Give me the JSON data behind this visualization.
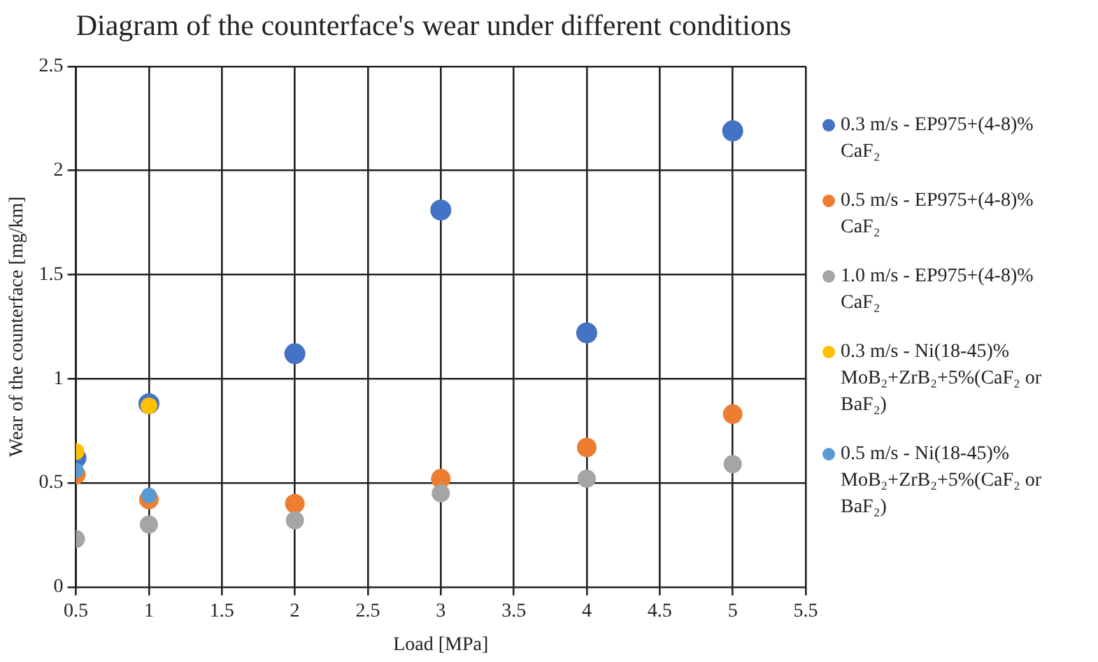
{
  "chart_data": {
    "type": "scatter",
    "title": "Diagram of the counterface's wear under different conditions",
    "xlabel": "Load [MPa]",
    "ylabel": "Wear of the counterface [mg/km]",
    "xlim": [
      0.5,
      5.5
    ],
    "xticks": [
      0.5,
      1,
      1.5,
      2,
      2.5,
      3,
      3.5,
      4,
      4.5,
      5,
      5.5
    ],
    "ylim": [
      0,
      2.5
    ],
    "yticks": [
      0,
      0.5,
      1,
      1.5,
      2,
      2.5
    ],
    "grid": true,
    "legend": "right",
    "marker": "circle",
    "series": [
      {
        "name": "0.3 m/s - EP975+(4-8)% CaF₂",
        "color": "#4472c4",
        "x": [
          0.5,
          1,
          2,
          3,
          4,
          5
        ],
        "values": [
          0.62,
          0.88,
          1.12,
          1.81,
          1.22,
          2.19
        ]
      },
      {
        "name": "0.5 m/s - EP975+(4-8)% CaF₂",
        "color": "#ed7d31",
        "x": [
          0.5,
          1,
          2,
          3,
          4,
          5
        ],
        "values": [
          0.54,
          0.42,
          0.4,
          0.52,
          0.67,
          0.83
        ]
      },
      {
        "name": "1.0 m/s - EP975+(4-8)% CaF₂",
        "color": "#a5a5a5",
        "x": [
          0.5,
          1,
          2,
          3,
          4,
          5
        ],
        "values": [
          0.23,
          0.3,
          0.32,
          0.45,
          0.52,
          0.59
        ]
      },
      {
        "name": "0.3 m/s - Ni(18-45)% MoB₂+ZrB₂+5%(CaF₂ or BaF₂)",
        "color": "#ffc000",
        "x": [
          0.5,
          1
        ],
        "values": [
          0.65,
          0.87
        ]
      },
      {
        "name": "0.5 m/s - Ni(18-45)% MoB₂+ZrB₂+5%(CaF₂ or BaF₂)",
        "color": "#5b9bd5",
        "x": [
          0.5,
          1
        ],
        "values": [
          0.56,
          0.44
        ]
      }
    ]
  }
}
